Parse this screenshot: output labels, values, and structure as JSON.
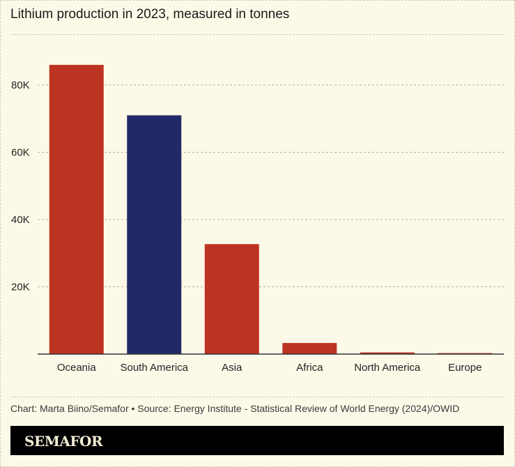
{
  "chart_data": {
    "type": "bar",
    "title": "Lithium production in 2023, measured in tonnes",
    "xlabel": "",
    "ylabel": "",
    "categories": [
      "Oceania",
      "South America",
      "Asia",
      "Africa",
      "North America",
      "Europe"
    ],
    "values": [
      86000,
      71000,
      32700,
      3300,
      500,
      300
    ],
    "colors": [
      "#bd3322",
      "#212a66",
      "#bd3322",
      "#bd3322",
      "#bd3322",
      "#bd3322"
    ],
    "ylim": [
      0,
      90000
    ],
    "yticks": [
      20000,
      40000,
      60000,
      80000
    ],
    "ytick_labels": [
      "20K",
      "40K",
      "60K",
      "80K"
    ],
    "grid": true,
    "legend": "none"
  },
  "credit": "Chart: Marta Biino/Semafor • Source: Energy Institute - Statistical Review of World Energy (2024)/OWID",
  "brand": "SEMAFOR"
}
